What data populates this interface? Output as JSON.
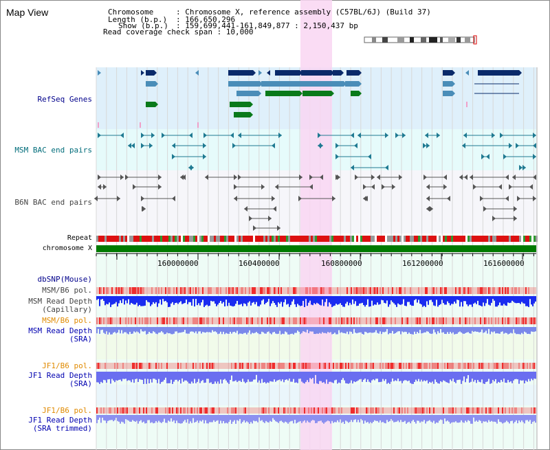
{
  "title": "Map View",
  "header": {
    "line1_key": "Chromosome",
    "line1_val": ": Chromosome X, reference assembly (C57BL/6J) (Build 37)",
    "line2_key": "Length (b.p.)",
    "line2_val": ": 166,650,296",
    "line3_key": "Show (b.p.)",
    "line3_val": ": 159,699,441-161,849,877 : 2,150,437 bp",
    "line4": "Read coverage check span : 10,000"
  },
  "tracks": {
    "refseq": "RefSeq Genes",
    "msm_bac": "MSM BAC end pairs",
    "b6n_bac": "B6N BAC end pairs",
    "repeat": "Repeat",
    "chromosome": "chromosome X",
    "dbsnp": "dbSNP(Mouse)",
    "msm_b6_pol": "MSM/B6 pol.",
    "msm_depth_cap_1": "MSM Read Depth",
    "msm_depth_cap_2": "(Capillary)",
    "msm_b6_pol2": "MSM/B6 pol.",
    "msm_depth_sra_1": "MSM Read Depth",
    "msm_depth_sra_2": "(SRA)",
    "jf1_b6_pol": "JF1/B6 pol.",
    "jf1_depth_sra_1": "JF1 Read Depth",
    "jf1_depth_sra_2": "(SRA)",
    "jf1_b6_pol2": "JF1/B6 pol.",
    "jf1_depth_trim_1": "JF1 Read Depth",
    "jf1_depth_trim_2": "(SRA trimmed)"
  },
  "axis_ticks": [
    "160000000",
    "160400000",
    "160800000",
    "161200000",
    "161600000"
  ],
  "colors": {
    "refseq_bg": "#dff0fb",
    "msm_bg": "#e6fbfb",
    "b6n_bg": "#f6f6fa",
    "highlight": "#f9d6f2",
    "label_blue": "#00008b",
    "label_teal": "#006c7a",
    "label_gray": "#444444",
    "label_orange": "#e08a00",
    "chrom_green": "#007a00",
    "gene_navy": "#0a2a6a",
    "gene_steel": "#4a8db8",
    "gene_green": "#0a7a1a"
  }
}
